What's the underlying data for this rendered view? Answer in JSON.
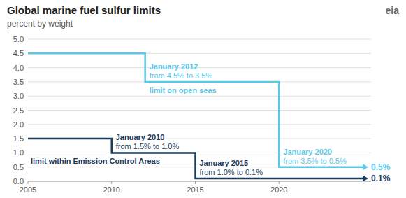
{
  "chart_data": {
    "type": "line",
    "title": "Global marine fuel sulfur limits",
    "subtitle": "percent by weight",
    "logo": "eia",
    "xlim": [
      2005,
      2025.5
    ],
    "ylim": [
      0,
      5.0
    ],
    "xticks": [
      2005,
      2010,
      2015,
      2020
    ],
    "yticks": [
      {
        "value": 0,
        "label": "0.0"
      },
      0.5,
      {
        "value": 1,
        "label": "1.0"
      },
      1.5,
      {
        "value": 2,
        "label": "2.0"
      },
      2.5,
      {
        "value": 3,
        "label": "3.0"
      },
      3.5,
      {
        "value": 4,
        "label": "4.0"
      },
      4.5,
      {
        "value": 5,
        "label": "5.0"
      }
    ],
    "grid": true,
    "series": [
      {
        "name": "limit on open seas",
        "color": "#5BC8E8",
        "x": [
          2005,
          2012,
          2012,
          2020,
          2020,
          2025
        ],
        "values": [
          4.5,
          4.5,
          3.5,
          3.5,
          0.5,
          0.5
        ],
        "end_label": "0.5%",
        "annotations": [
          {
            "x": 2012,
            "title": "January 2012",
            "text": "from 4.5% to 3.5%"
          },
          {
            "x": 2020,
            "title": "January 2020",
            "text": "from 3.5% to 0.5%"
          }
        ]
      },
      {
        "name": "limit within Emission Control Areas",
        "color": "#1B3A5C",
        "x": [
          2005,
          2010,
          2010,
          2015,
          2015,
          2025
        ],
        "values": [
          1.5,
          1.5,
          1.0,
          1.0,
          0.1,
          0.1
        ],
        "end_label": "0.1%",
        "annotations": [
          {
            "x": 2010,
            "title": "January 2010",
            "text": "from 1.5% to 1.0%"
          },
          {
            "x": 2015,
            "title": "January 2015",
            "text": "from 1.0% to 0.1%"
          }
        ]
      }
    ]
  }
}
